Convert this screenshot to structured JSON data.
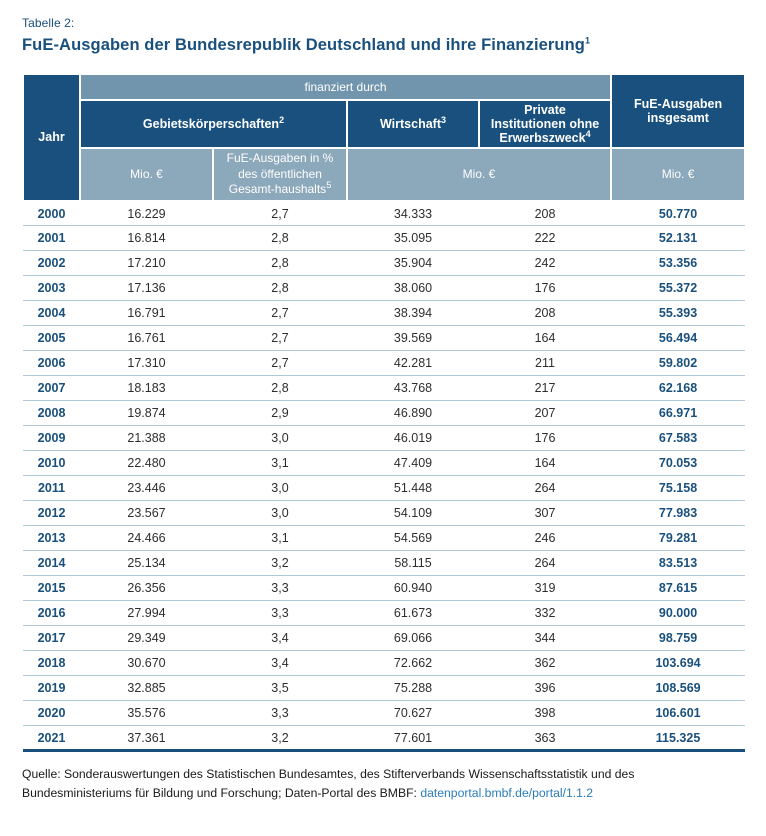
{
  "page": {
    "eyebrow": "Tabelle 2:",
    "title": "FuE-Ausgaben der Bundesrepublik Deutschland und ihre Finanzierung",
    "title_footnote": "1"
  },
  "colors": {
    "header_dark_blue": "#19507D",
    "header_band_blue": "#7195AC",
    "header_light_blue": "#8CA8BB",
    "row_divider": "#AECADA",
    "bottom_rule": "#19507D",
    "accent_text": "#19507D",
    "body_text": "#2E2E2E",
    "link": "#2B7CB9"
  },
  "table": {
    "header": {
      "jahr": "Jahr",
      "finanziert_durch": "finanziert durch",
      "gebietskoerperschaften": {
        "label": "Gebietskörperschaften",
        "footnote": "2"
      },
      "wirtschaft": {
        "label": "Wirtschaft",
        "footnote": "3"
      },
      "private_institutionen": {
        "label": "Private Institutionen ohne Erwerbszweck",
        "footnote": "4"
      },
      "fue_ausgaben_insgesamt": "FuE-Ausgaben insgesamt",
      "mio_eur_gebiet": "Mio. €",
      "pct": {
        "label": "FuE-Ausgaben in % des öffentlichen Gesamt-haushalts",
        "footnote": "5"
      },
      "mio_eur_mitte": "Mio. €",
      "mio_eur_gesamt": "Mio. €"
    },
    "columns": [
      "year",
      "gebiet_mio",
      "gebiet_pct",
      "wirtschaft_mio",
      "private_mio",
      "total_mio"
    ],
    "rows": [
      {
        "year": "2000",
        "gebiet_mio": "16.229",
        "gebiet_pct": "2,7",
        "wirtschaft_mio": "34.333",
        "private_mio": "208",
        "total_mio": "50.770"
      },
      {
        "year": "2001",
        "gebiet_mio": "16.814",
        "gebiet_pct": "2,8",
        "wirtschaft_mio": "35.095",
        "private_mio": "222",
        "total_mio": "52.131"
      },
      {
        "year": "2002",
        "gebiet_mio": "17.210",
        "gebiet_pct": "2,8",
        "wirtschaft_mio": "35.904",
        "private_mio": "242",
        "total_mio": "53.356"
      },
      {
        "year": "2003",
        "gebiet_mio": "17.136",
        "gebiet_pct": "2,8",
        "wirtschaft_mio": "38.060",
        "private_mio": "176",
        "total_mio": "55.372"
      },
      {
        "year": "2004",
        "gebiet_mio": "16.791",
        "gebiet_pct": "2,7",
        "wirtschaft_mio": "38.394",
        "private_mio": "208",
        "total_mio": "55.393"
      },
      {
        "year": "2005",
        "gebiet_mio": "16.761",
        "gebiet_pct": "2,7",
        "wirtschaft_mio": "39.569",
        "private_mio": "164",
        "total_mio": "56.494"
      },
      {
        "year": "2006",
        "gebiet_mio": "17.310",
        "gebiet_pct": "2,7",
        "wirtschaft_mio": "42.281",
        "private_mio": "211",
        "total_mio": "59.802"
      },
      {
        "year": "2007",
        "gebiet_mio": "18.183",
        "gebiet_pct": "2,8",
        "wirtschaft_mio": "43.768",
        "private_mio": "217",
        "total_mio": "62.168"
      },
      {
        "year": "2008",
        "gebiet_mio": "19.874",
        "gebiet_pct": "2,9",
        "wirtschaft_mio": "46.890",
        "private_mio": "207",
        "total_mio": "66.971"
      },
      {
        "year": "2009",
        "gebiet_mio": "21.388",
        "gebiet_pct": "3,0",
        "wirtschaft_mio": "46.019",
        "private_mio": "176",
        "total_mio": "67.583"
      },
      {
        "year": "2010",
        "gebiet_mio": "22.480",
        "gebiet_pct": "3,1",
        "wirtschaft_mio": "47.409",
        "private_mio": "164",
        "total_mio": "70.053"
      },
      {
        "year": "2011",
        "gebiet_mio": "23.446",
        "gebiet_pct": "3,0",
        "wirtschaft_mio": "51.448",
        "private_mio": "264",
        "total_mio": "75.158"
      },
      {
        "year": "2012",
        "gebiet_mio": "23.567",
        "gebiet_pct": "3,0",
        "wirtschaft_mio": "54.109",
        "private_mio": "307",
        "total_mio": "77.983"
      },
      {
        "year": "2013",
        "gebiet_mio": "24.466",
        "gebiet_pct": "3,1",
        "wirtschaft_mio": "54.569",
        "private_mio": "246",
        "total_mio": "79.281"
      },
      {
        "year": "2014",
        "gebiet_mio": "25.134",
        "gebiet_pct": "3,2",
        "wirtschaft_mio": "58.115",
        "private_mio": "264",
        "total_mio": "83.513"
      },
      {
        "year": "2015",
        "gebiet_mio": "26.356",
        "gebiet_pct": "3,3",
        "wirtschaft_mio": "60.940",
        "private_mio": "319",
        "total_mio": "87.615"
      },
      {
        "year": "2016",
        "gebiet_mio": "27.994",
        "gebiet_pct": "3,3",
        "wirtschaft_mio": "61.673",
        "private_mio": "332",
        "total_mio": "90.000"
      },
      {
        "year": "2017",
        "gebiet_mio": "29.349",
        "gebiet_pct": "3,4",
        "wirtschaft_mio": "69.066",
        "private_mio": "344",
        "total_mio": "98.759"
      },
      {
        "year": "2018",
        "gebiet_mio": "30.670",
        "gebiet_pct": "3,4",
        "wirtschaft_mio": "72.662",
        "private_mio": "362",
        "total_mio": "103.694"
      },
      {
        "year": "2019",
        "gebiet_mio": "32.885",
        "gebiet_pct": "3,5",
        "wirtschaft_mio": "75.288",
        "private_mio": "396",
        "total_mio": "108.569"
      },
      {
        "year": "2020",
        "gebiet_mio": "35.576",
        "gebiet_pct": "3,3",
        "wirtschaft_mio": "70.627",
        "private_mio": "398",
        "total_mio": "106.601"
      },
      {
        "year": "2021",
        "gebiet_mio": "37.361",
        "gebiet_pct": "3,2",
        "wirtschaft_mio": "77.601",
        "private_mio": "363",
        "total_mio": "115.325"
      }
    ]
  },
  "footer": {
    "source_prefix": "Quelle: Sonderauswertungen des Statistischen Bundesamtes, des Stifterverbands Wissenschaftsstatistik und des Bundesministeriums für Bildung und Forschung; Daten-Portal des BMBF:",
    "link_text": "datenportal.bmbf.de/portal/1.1.2"
  }
}
